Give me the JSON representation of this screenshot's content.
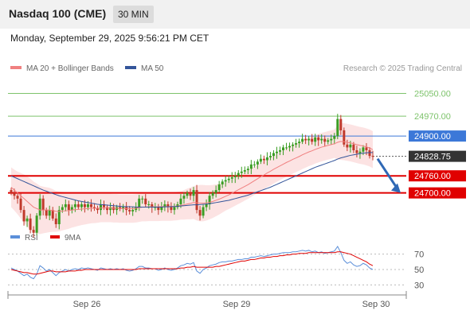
{
  "header": {
    "title": "Nasdaq 100 (CME)",
    "interval": "30 MIN",
    "datetime": "Monday, September 29, 2025 9:56:21 PM CET"
  },
  "legend": {
    "ma20": "MA 20 + Bollinger Bands",
    "ma50": "MA 50",
    "rsi": "RSI",
    "ma9": "9MA",
    "credit": "Research © 2025 Trading Central"
  },
  "colors": {
    "bullish": "#3a9d23",
    "bearish": "#c0392b",
    "ma20": "#f08080",
    "bollinger_fill": "#fbd9d9",
    "ma50": "#34559a",
    "resistance": "#7dc36b",
    "pivot": "#3c78d8",
    "support": "#e00000",
    "price_label": "#333333",
    "rsi": "#5b8fd9",
    "rsi_ma": "#e00000"
  },
  "chart_data": [
    {
      "type": "candlestick",
      "x_labels": [
        "Sep 26",
        "Sep 29",
        "Sep 30"
      ],
      "ylim": [
        24590,
        25110
      ],
      "levels": [
        {
          "value": 25050.0,
          "label": "25050.00",
          "kind": "resistance"
        },
        {
          "value": 24970.0,
          "label": "24970.00",
          "kind": "resistance"
        },
        {
          "value": 24900.0,
          "label": "24900.00",
          "kind": "pivot"
        },
        {
          "value": 24828.75,
          "label": "24828.75",
          "kind": "last"
        },
        {
          "value": 24760.0,
          "label": "24760.00",
          "kind": "support"
        },
        {
          "value": 24700.0,
          "label": "24700.00",
          "kind": "support"
        }
      ],
      "series_close": [
        24700,
        24690,
        24680,
        24640,
        24600,
        24610,
        24570,
        24560,
        24620,
        24680,
        24640,
        24620,
        24640,
        24610,
        24590,
        24640,
        24650,
        24660,
        24640,
        24650,
        24660,
        24650,
        24660,
        24650,
        24660,
        24650,
        24645,
        24640,
        24660,
        24650,
        24640,
        24650,
        24640,
        24650,
        24645,
        24650,
        24640,
        24635,
        24640,
        24650,
        24680,
        24680,
        24660,
        24660,
        24650,
        24650,
        24640,
        24650,
        24660,
        24650,
        24640,
        24650,
        24660,
        24680,
        24690,
        24700,
        24690,
        24710,
        24640,
        24620,
        24650,
        24660,
        24690,
        24700,
        24710,
        24730,
        24740,
        24745,
        24750,
        24755,
        24760,
        24770,
        24775,
        24780,
        24785,
        24800,
        24800,
        24810,
        24820,
        24815,
        24825,
        24830,
        24840,
        24845,
        24850,
        24860,
        24860,
        24865,
        24870,
        24875,
        24880,
        24890,
        24885,
        24890,
        24880,
        24895,
        24885,
        24890,
        24880,
        24885,
        24890,
        24900,
        24960,
        24920,
        24870,
        24860,
        24870,
        24850,
        24840,
        24845,
        24860,
        24850,
        24830,
        24828.75
      ],
      "ma20": [
        24720,
        24710,
        24700,
        24690,
        24680,
        24670,
        24660,
        24650,
        24645,
        24640,
        24640,
        24640,
        24640,
        24638,
        24635,
        24635,
        24636,
        24637,
        24638,
        24640,
        24641,
        24642,
        24643,
        24644,
        24645,
        24646,
        24646,
        24646,
        24647,
        24647,
        24647,
        24647,
        24646,
        24646,
        24645,
        24645,
        24645,
        24645,
        24645,
        24646,
        24648,
        24650,
        24650,
        24651,
        24651,
        24651,
        24651,
        24652,
        24652,
        24652,
        24652,
        24653,
        24654,
        24656,
        24658,
        24661,
        24663,
        24666,
        24665,
        24664,
        24664,
        24665,
        24667,
        24670,
        24674,
        24678,
        24683,
        24688,
        24693,
        24699,
        24705,
        24711,
        24717,
        24723,
        24729,
        24736,
        24743,
        24750,
        24757,
        24763,
        24770,
        24776,
        24783,
        24789,
        24795,
        24801,
        24807,
        24812,
        24818,
        24823,
        24828,
        24834,
        24839,
        24844,
        24848,
        24853,
        24857,
        24861,
        24864,
        24867,
        24870,
        24873,
        24878,
        24881,
        24880,
        24878,
        24876,
        24873,
        24870,
        24867,
        24865,
        24862,
        24858,
        24852
      ],
      "ma50": [
        24760,
        24755,
        24750,
        24745,
        24740,
        24735,
        24730,
        24725,
        24720,
        24715,
        24710,
        24706,
        24702,
        24698,
        24694,
        24690,
        24687,
        24684,
        24681,
        24678,
        24675,
        24672,
        24670,
        24668,
        24666,
        24664,
        24662,
        24660,
        24659,
        24658,
        24657,
        24656,
        24655,
        24654,
        24653,
        24652,
        24652,
        24651,
        24651,
        24650,
        24650,
        24650,
        24650,
        24650,
        24650,
        24650,
        24650,
        24650,
        24651,
        24651,
        24652,
        24652,
        24653,
        24654,
        24655,
        24656,
        24657,
        24658,
        24658,
        24659,
        24660,
        24661,
        24662,
        24664,
        24666,
        24668,
        24670,
        24672,
        24674,
        24677,
        24680,
        24683,
        24686,
        24689,
        24692,
        24696,
        24700,
        24704,
        24708,
        24712,
        24716,
        24720,
        24725,
        24730,
        24735,
        24740,
        24745,
        24750,
        24755,
        24760,
        24765,
        24770,
        24775,
        24780,
        24785,
        24790,
        24794,
        24798,
        24802,
        24806,
        24810,
        24814,
        24819,
        24823,
        24826,
        24829,
        24832,
        24834,
        24836,
        24838,
        24840,
        24841,
        24842,
        24842
      ],
      "bb_width": [
        70,
        72,
        75,
        80,
        85,
        88,
        90,
        90,
        88,
        85,
        82,
        80,
        78,
        75,
        72,
        70,
        68,
        66,
        64,
        62,
        60,
        58,
        56,
        55,
        54,
        53,
        52,
        51,
        50,
        50,
        50,
        50,
        50,
        50,
        50,
        50,
        50,
        50,
        50,
        50,
        50,
        50,
        50,
        50,
        50,
        50,
        50,
        50,
        50,
        50,
        50,
        50,
        50,
        50,
        52,
        54,
        56,
        58,
        62,
        64,
        64,
        62,
        60,
        58,
        56,
        54,
        52,
        50,
        50,
        50,
        50,
        50,
        50,
        50,
        50,
        50,
        50,
        50,
        50,
        50,
        50,
        50,
        50,
        50,
        50,
        50,
        50,
        50,
        50,
        50,
        50,
        50,
        50,
        50,
        50,
        50,
        50,
        50,
        50,
        50,
        50,
        50,
        60,
        65,
        65,
        65,
        65,
        65,
        65,
        65,
        65,
        65,
        65,
        65
      ]
    },
    {
      "type": "line",
      "series": [
        {
          "name": "RSI",
          "values": [
            52,
            50,
            48,
            45,
            42,
            44,
            40,
            38,
            44,
            55,
            52,
            48,
            50,
            46,
            42,
            46,
            48,
            50,
            48,
            50,
            51,
            50,
            52,
            51,
            52,
            51,
            50,
            49,
            52,
            51,
            50,
            51,
            50,
            51,
            50,
            51,
            49,
            48,
            49,
            51,
            54,
            54,
            52,
            52,
            51,
            51,
            49,
            50,
            52,
            50,
            49,
            50,
            52,
            55,
            56,
            58,
            57,
            59,
            48,
            45,
            50,
            52,
            55,
            56,
            57,
            59,
            60,
            60,
            61,
            61,
            62,
            63,
            63,
            64,
            64,
            66,
            66,
            67,
            68,
            67,
            68,
            69,
            70,
            70,
            71,
            72,
            72,
            72,
            73,
            73,
            74,
            75,
            74,
            75,
            73,
            74,
            72,
            73,
            71,
            72,
            73,
            74,
            80,
            72,
            62,
            58,
            60,
            56,
            54,
            55,
            58,
            56,
            52,
            50
          ]
        },
        {
          "name": "9MA",
          "values": [
            50,
            49,
            48,
            47,
            46,
            46,
            45,
            44,
            44,
            45,
            46,
            47,
            48,
            48,
            47,
            47,
            47,
            47,
            48,
            48,
            48,
            49,
            49,
            50,
            50,
            50,
            50,
            50,
            50,
            50,
            50,
            50,
            50,
            50,
            50,
            50,
            50,
            50,
            50,
            50,
            51,
            51,
            51,
            51,
            51,
            51,
            51,
            51,
            51,
            51,
            51,
            51,
            51,
            52,
            52,
            53,
            53,
            54,
            53,
            53,
            53,
            53,
            53,
            53,
            54,
            54,
            55,
            56,
            57,
            58,
            59,
            60,
            61,
            61,
            62,
            63,
            63,
            64,
            65,
            65,
            66,
            66,
            67,
            67,
            68,
            68,
            69,
            69,
            70,
            70,
            71,
            71,
            71,
            72,
            72,
            72,
            72,
            72,
            72,
            72,
            72,
            72,
            73,
            73,
            72,
            71,
            70,
            68,
            66,
            64,
            62,
            60,
            57,
            55
          ]
        }
      ],
      "ylim": [
        20,
        80
      ],
      "yticks": [
        "70",
        "50",
        "30"
      ],
      "x_labels": [
        "Sep 26",
        "Sep 29",
        "Sep 30"
      ]
    }
  ]
}
